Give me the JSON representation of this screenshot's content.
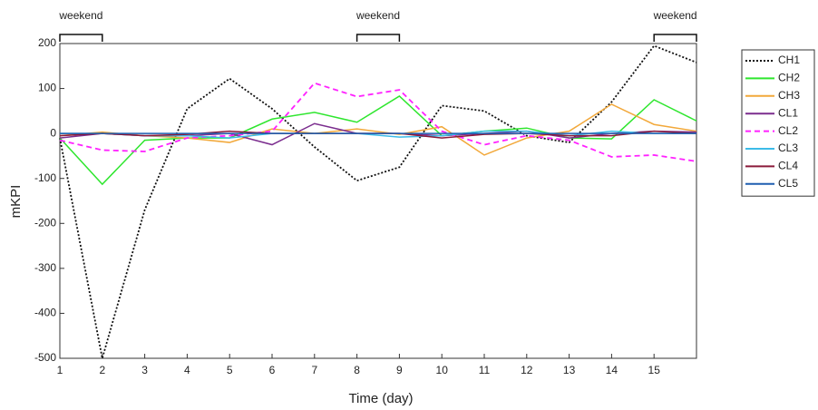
{
  "chart_data": {
    "type": "line",
    "x_label": "Time  (day)",
    "y_label": "mKPI",
    "x": [
      1,
      2,
      3,
      4,
      5,
      6,
      7,
      8,
      9,
      10,
      11,
      12,
      13,
      14,
      15,
      16
    ],
    "xlim": [
      1,
      16
    ],
    "xticks": [
      1,
      2,
      3,
      4,
      5,
      6,
      7,
      8,
      9,
      10,
      11,
      12,
      13,
      14,
      15
    ],
    "ylim": [
      -500,
      200
    ],
    "yticks": [
      -500,
      -400,
      -300,
      -200,
      -100,
      0,
      100,
      200
    ],
    "legend": "outside-right",
    "annotations": [
      {
        "text": "weekend",
        "start": 1,
        "end": 2
      },
      {
        "text": "weekend",
        "start": 8,
        "end": 9
      },
      {
        "text": "weekend",
        "start": 15,
        "end": 16
      }
    ],
    "series": [
      {
        "name": "CH1",
        "color": "#111111",
        "style": "dotted",
        "values": [
          -10,
          -500,
          -170,
          55,
          122,
          55,
          -30,
          -105,
          -75,
          62,
          50,
          -5,
          -20,
          70,
          195,
          158
        ]
      },
      {
        "name": "CH2",
        "color": "#2ee62e",
        "style": "solid",
        "values": [
          -10,
          -113,
          -15,
          -10,
          -10,
          32,
          47,
          25,
          83,
          -5,
          5,
          12,
          -10,
          -12,
          75,
          28
        ]
      },
      {
        "name": "CH3",
        "color": "#f2a83a",
        "style": "solid",
        "values": [
          -5,
          3,
          -5,
          -10,
          -20,
          10,
          0,
          10,
          -2,
          15,
          -48,
          -10,
          5,
          65,
          20,
          5
        ]
      },
      {
        "name": "CL1",
        "color": "#7b2d8e",
        "style": "solid",
        "values": [
          -10,
          0,
          -5,
          -5,
          0,
          -25,
          22,
          0,
          0,
          -5,
          0,
          5,
          -10,
          0,
          5,
          3
        ]
      },
      {
        "name": "CL2",
        "color": "#ff22ff",
        "style": "dashed",
        "values": [
          -15,
          -37,
          -40,
          -10,
          -5,
          5,
          112,
          82,
          97,
          5,
          -25,
          -5,
          -15,
          -52,
          -48,
          -62
        ]
      },
      {
        "name": "CL3",
        "color": "#3cbbe8",
        "style": "solid",
        "values": [
          0,
          0,
          -5,
          -5,
          -10,
          0,
          0,
          0,
          -8,
          -5,
          5,
          5,
          -5,
          5,
          0,
          0
        ]
      },
      {
        "name": "CL4",
        "color": "#8b1a3a",
        "style": "solid",
        "values": [
          -5,
          0,
          -5,
          -2,
          5,
          0,
          0,
          0,
          0,
          -10,
          -2,
          0,
          -5,
          -5,
          5,
          0
        ]
      },
      {
        "name": "CL5",
        "color": "#1f5fb0",
        "style": "solid",
        "values": [
          0,
          0,
          0,
          0,
          0,
          0,
          0,
          0,
          0,
          0,
          0,
          0,
          0,
          0,
          0,
          0
        ]
      }
    ]
  }
}
